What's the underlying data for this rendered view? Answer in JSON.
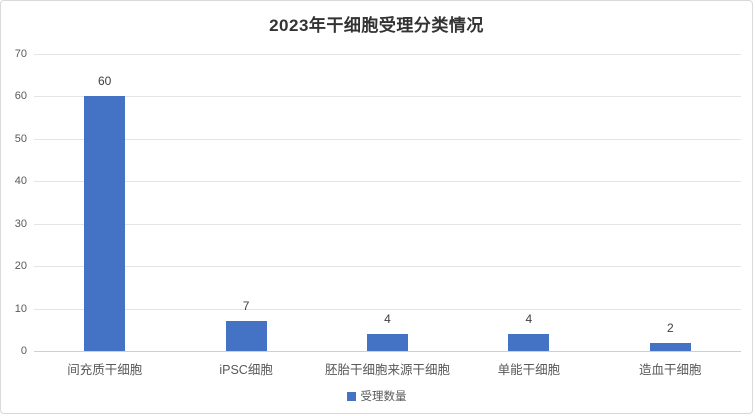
{
  "chart_data": {
    "type": "bar",
    "title": "2023年干细胞受理分类情况",
    "categories": [
      "间充质干细胞",
      "iPSC细胞",
      "胚胎干细胞来源干细胞",
      "单能干细胞",
      "造血干细胞"
    ],
    "series": [
      {
        "name": "受理数量",
        "color": "#4472C4",
        "values": [
          60,
          7,
          4,
          4,
          2
        ]
      }
    ],
    "xlabel": "",
    "ylabel": "",
    "ylim": [
      0,
      70
    ],
    "yticks": [
      0,
      10,
      20,
      30,
      40,
      50,
      60,
      70
    ],
    "grid": true,
    "data_labels": true,
    "legend_position": "bottom"
  },
  "colors": {
    "bar": "#4472C4",
    "gridline": "#E4E4E4",
    "axis_line": "#CFCFCF",
    "tick_label": "#595959",
    "category_label": "#595959",
    "value_label": "#404040",
    "title": "#333333",
    "card_border": "#D9D9D9",
    "background": "#FFFFFF"
  }
}
